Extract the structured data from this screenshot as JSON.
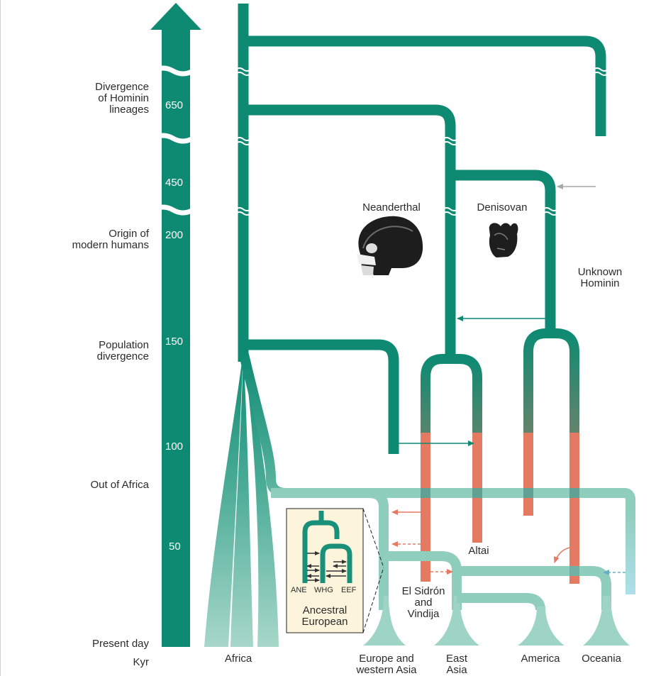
{
  "colors": {
    "teal": "#0f8a72",
    "light_teal": "#8fcdbd",
    "salmon": "#e47a62",
    "blue": "#aee0ea",
    "grey": "#b0b0b0",
    "inset_bg": "#fcf5dc"
  },
  "axis": {
    "unit_label": "Kyr",
    "events": {
      "divergence": "Divergence\nof Hominin\nlineages",
      "origin": "Origin of\nmodern humans",
      "population": "Population\ndivergence",
      "out_of_africa": "Out of Africa",
      "present": "Present day"
    },
    "ticks": [
      "650",
      "450",
      "200",
      "150",
      "100",
      "50"
    ]
  },
  "lineages": {
    "neanderthal": "Neanderthal",
    "denisovan": "Denisovan",
    "unknown": "Unknown\nHominin",
    "altai": "Altai",
    "el_sidron": "El Sidrón\nand\nVindija"
  },
  "populations": {
    "africa": "Africa",
    "europe": "Europe and\nwestern Asia",
    "east_asia": "East\nAsia",
    "america": "America",
    "oceania": "Oceania"
  },
  "inset": {
    "title": "Ancestral\nEuropean",
    "groups": [
      "ANE",
      "WHG",
      "EEF"
    ]
  }
}
